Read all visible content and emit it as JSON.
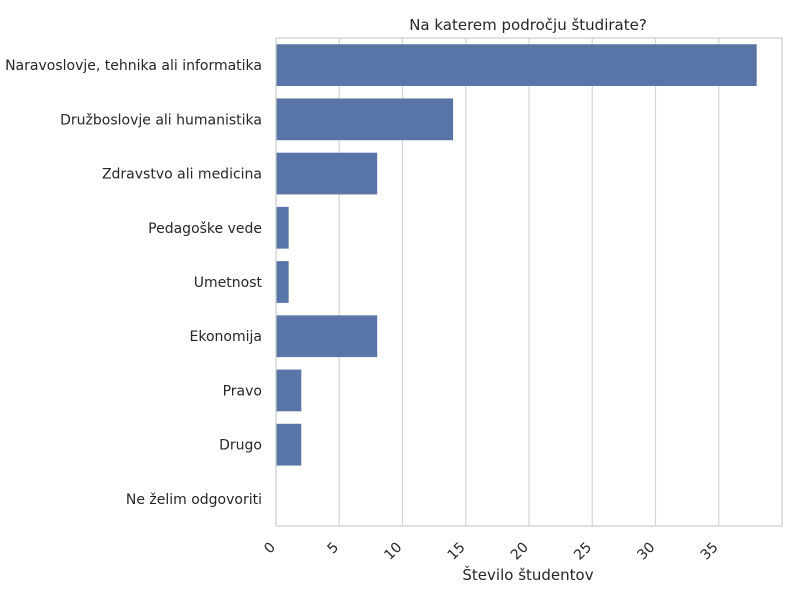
{
  "chart_data": {
    "type": "bar",
    "orientation": "horizontal",
    "title": "Na katerem področju študirate?",
    "xlabel": "Število študentov",
    "ylabel": "",
    "categories": [
      "Naravoslovje, tehnika ali informatika",
      "Družboslovje ali humanistika",
      "Zdravstvo ali medicina",
      "Pedagoške vede",
      "Umetnost",
      "Ekonomija",
      "Pravo",
      "Drugo",
      "Ne želim odgovoriti"
    ],
    "values": [
      38,
      14,
      8,
      1,
      1,
      8,
      2,
      2,
      0
    ],
    "xlim": [
      0,
      40
    ],
    "xticks": [
      0,
      5,
      10,
      15,
      20,
      25,
      30,
      35
    ],
    "xtick_rotation": 45,
    "grid": "vertical",
    "bar_color": "#5975a8",
    "grid_color": "#d6d6d6",
    "frame_color": "#cccccc"
  }
}
